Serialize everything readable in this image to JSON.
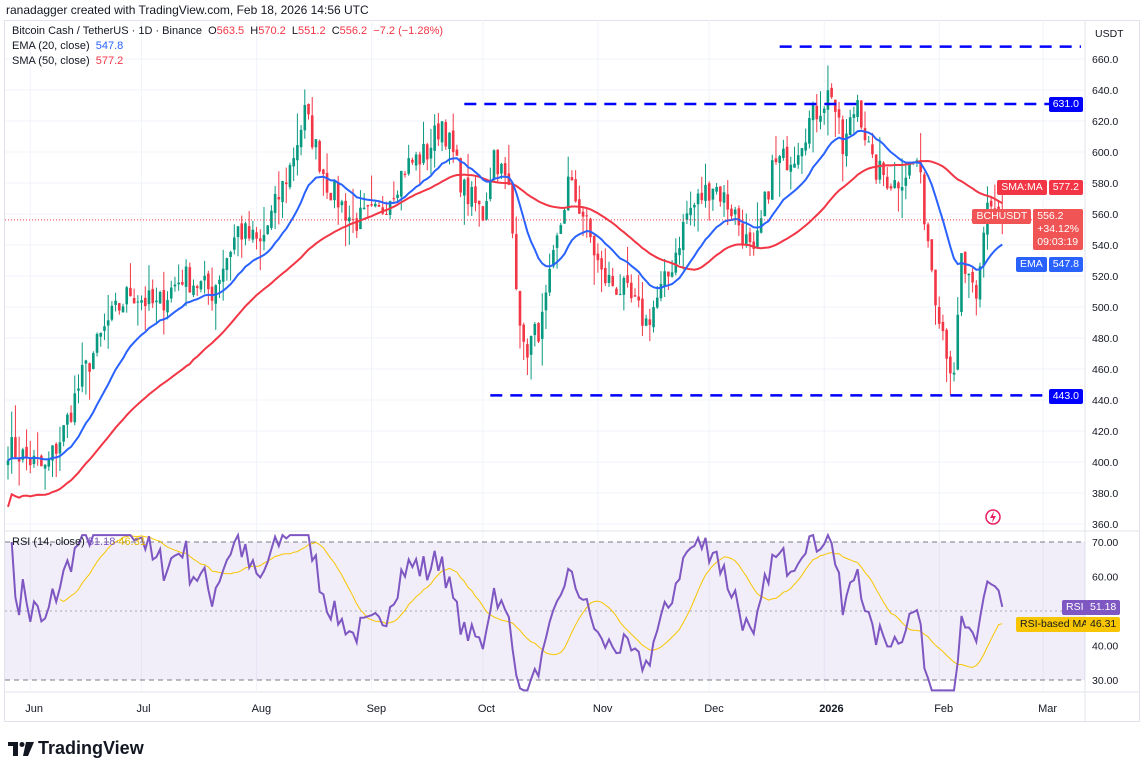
{
  "credit": "ranadagger created with TradingView.com, Feb 18, 2026 14:56 UTC",
  "legend": {
    "symbol": "Bitcoin Cash / TetherUS · 1D · Binance",
    "o_label": "O",
    "o": "563.5",
    "h_label": "H",
    "h": "570.2",
    "l_label": "L",
    "l": "551.2",
    "c_label": "C",
    "c": "556.2",
    "change": "−7.2 (−1.28%)",
    "ema": "EMA (20, close)",
    "ema_val": "547.8",
    "sma": "SMA (50, close)",
    "sma_val": "577.2",
    "rsi": "RSI (14, close)",
    "rsi_val": "51.18",
    "rsi_ma_val": "46.31"
  },
  "axis": {
    "currency": "USDT",
    "sma_tag": "SMA:MA",
    "sma_tag_val": "577.2",
    "price_tag": "BCHUSDT",
    "price_tag_val": "556.2",
    "price_tag_pct": "+34.12%",
    "price_tag_timer": "09:03:19",
    "ema_tag": "EMA",
    "ema_tag_val": "547.8",
    "level_631": "631.0",
    "level_443": "443.0",
    "rsi_tag": "RSI",
    "rsi_tag_val": "51.18",
    "rsi_ma_tag": "RSI-based MA",
    "rsi_ma_tag_val": "46.31"
  },
  "brand": "TradingView",
  "colors": {
    "up": "#089981",
    "down": "#f23645",
    "ema": "#2962ff",
    "sma": "#f23645",
    "rsi": "#7e57c2",
    "rsi_ma": "#f7c600",
    "level": "#0000ff"
  },
  "chart_data": {
    "type": "candlestick",
    "price_ticks": [
      360,
      380,
      400,
      420,
      440,
      460,
      480,
      500,
      520,
      540,
      560,
      580,
      600,
      620,
      640,
      660
    ],
    "price_range": [
      355,
      675
    ],
    "time_labels": [
      {
        "label": "Jun",
        "date": "2025-06-01"
      },
      {
        "label": "Jul",
        "date": "2025-07-01"
      },
      {
        "label": "Aug",
        "date": "2025-08-01"
      },
      {
        "label": "Sep",
        "date": "2025-09-01"
      },
      {
        "label": "Oct",
        "date": "2025-10-01"
      },
      {
        "label": "Nov",
        "date": "2025-11-01"
      },
      {
        "label": "Dec",
        "date": "2025-12-01"
      },
      {
        "label": "2026",
        "date": "2026-01-01"
      },
      {
        "label": "Feb",
        "date": "2026-02-01"
      },
      {
        "label": "Mar",
        "date": "2026-03-01"
      }
    ],
    "horizontal_levels": [
      {
        "price": 668,
        "from": "2025-12-20"
      },
      {
        "price": 631,
        "from": "2025-09-26"
      },
      {
        "price": 443,
        "from": "2025-10-03"
      }
    ],
    "close_waypoints": [
      [
        "2025-05-26",
        410
      ],
      [
        "2025-06-05",
        395
      ],
      [
        "2025-06-10",
        420
      ],
      [
        "2025-06-15",
        455
      ],
      [
        "2025-06-22",
        490
      ],
      [
        "2025-06-28",
        510
      ],
      [
        "2025-07-05",
        500
      ],
      [
        "2025-07-12",
        520
      ],
      [
        "2025-07-20",
        510
      ],
      [
        "2025-07-27",
        550
      ],
      [
        "2025-08-02",
        540
      ],
      [
        "2025-08-10",
        590
      ],
      [
        "2025-08-14",
        625
      ],
      [
        "2025-08-20",
        580
      ],
      [
        "2025-08-27",
        555
      ],
      [
        "2025-09-03",
        560
      ],
      [
        "2025-09-10",
        590
      ],
      [
        "2025-09-16",
        600
      ],
      [
        "2025-09-20",
        620
      ],
      [
        "2025-09-26",
        575
      ],
      [
        "2025-10-01",
        560
      ],
      [
        "2025-10-04",
        600
      ],
      [
        "2025-10-08",
        575
      ],
      [
        "2025-10-10",
        520
      ],
      [
        "2025-10-12",
        470
      ],
      [
        "2025-10-17",
        490
      ],
      [
        "2025-10-24",
        580
      ],
      [
        "2025-10-28",
        560
      ],
      [
        "2025-11-02",
        520
      ],
      [
        "2025-11-08",
        510
      ],
      [
        "2025-11-14",
        490
      ],
      [
        "2025-11-20",
        520
      ],
      [
        "2025-11-25",
        560
      ],
      [
        "2025-12-02",
        580
      ],
      [
        "2025-12-08",
        560
      ],
      [
        "2025-12-13",
        530
      ],
      [
        "2025-12-18",
        590
      ],
      [
        "2025-12-24",
        600
      ],
      [
        "2025-12-28",
        620
      ],
      [
        "2026-01-03",
        640
      ],
      [
        "2026-01-06",
        600
      ],
      [
        "2026-01-10",
        635
      ],
      [
        "2026-01-14",
        590
      ],
      [
        "2026-01-20",
        580
      ],
      [
        "2026-01-26",
        595
      ],
      [
        "2026-01-31",
        510
      ],
      [
        "2026-02-05",
        450
      ],
      [
        "2026-02-07",
        530
      ],
      [
        "2026-02-11",
        500
      ],
      [
        "2026-02-14",
        570
      ],
      [
        "2026-02-18",
        556.2
      ]
    ],
    "ema_period": 20,
    "sma_period": 50,
    "rsi_period": 14,
    "rsi_ticks": [
      30,
      40,
      60,
      70
    ],
    "rsi_range": [
      25,
      73
    ],
    "rsi_bands": [
      30,
      70
    ]
  }
}
